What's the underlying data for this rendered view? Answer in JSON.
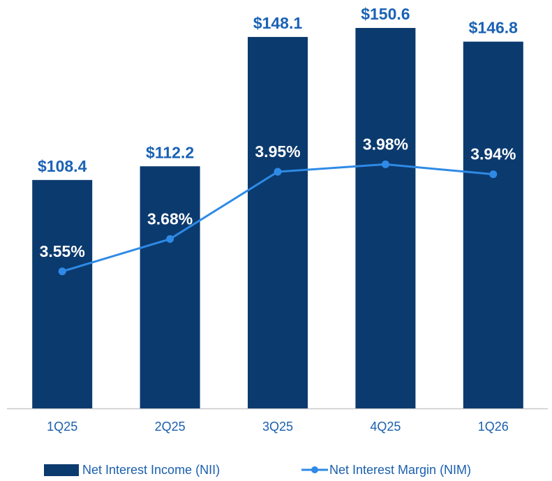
{
  "chart_data": {
    "type": "bar",
    "categories": [
      "1Q25",
      "2Q25",
      "3Q25",
      "4Q25",
      "1Q26"
    ],
    "series": [
      {
        "name": "Net Interest Income (NII)",
        "type": "bar",
        "color": "#0b3a6e",
        "values": [
          108.4,
          112.2,
          148.1,
          150.6,
          146.8
        ],
        "value_labels": [
          "$108.4",
          "$112.2",
          "$148.1",
          "$150.6",
          "$146.8"
        ]
      },
      {
        "name": "Net Interest Margin (NIM)",
        "type": "line",
        "color": "#2e8ae6",
        "axis": "y2",
        "values": [
          3.55,
          3.68,
          3.95,
          3.98,
          3.94
        ],
        "value_labels": [
          "3.55%",
          "3.68%",
          "3.95%",
          "3.98%",
          "3.94%"
        ]
      }
    ],
    "ylim": [
      45,
      157
    ],
    "y2lim": [
      3.0,
      4.62
    ]
  }
}
